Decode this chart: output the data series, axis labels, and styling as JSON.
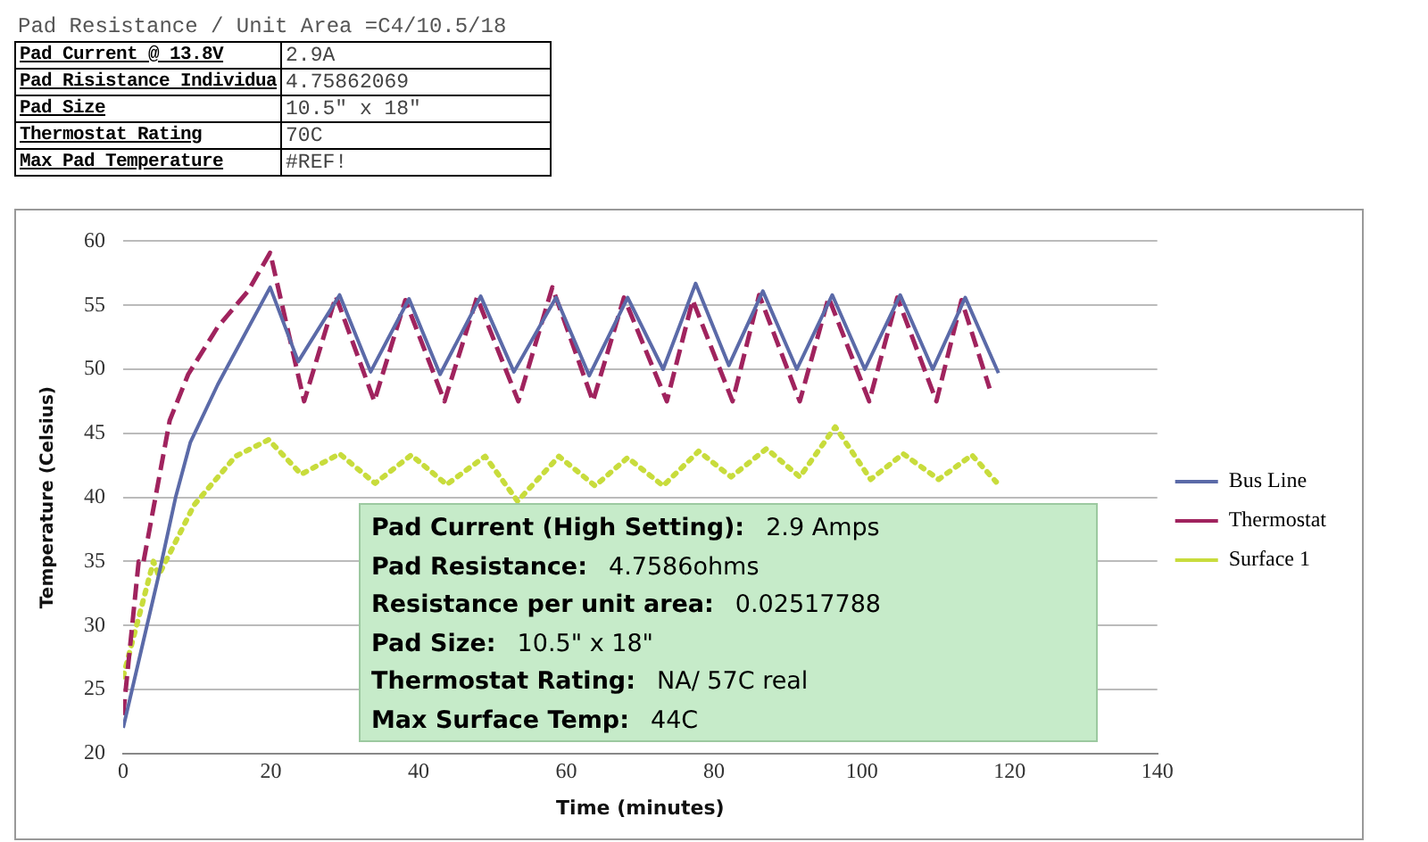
{
  "chart_data": {
    "type": "line",
    "xlabel": "Time (minutes)",
    "ylabel": "Temperature (Celsius)",
    "xlim": [
      0,
      140
    ],
    "xticks": [
      0,
      20,
      40,
      60,
      80,
      100,
      120,
      140
    ],
    "ylim": [
      20,
      60
    ],
    "yticks": [
      20,
      25,
      30,
      35,
      40,
      45,
      50,
      55,
      60
    ],
    "grid": "y",
    "legend": "right",
    "marker": "none",
    "series": [
      {
        "name": "Bus Line",
        "color": "#5b6aa8",
        "line_style": "solid",
        "x": [
          0,
          4.8,
          7.1,
          9.1,
          12.8,
          19.9,
          23.7,
          29.3,
          33.5,
          38.7,
          42.9,
          48.4,
          52.9,
          58.6,
          63.1,
          68.3,
          73.1,
          77.5,
          82.0,
          86.6,
          91.2,
          96.0,
          100.4,
          105.2,
          109.6,
          114.0,
          118.5
        ],
        "values": [
          22,
          33.9,
          40,
          44.3,
          48.8,
          56.4,
          50.6,
          55.8,
          49.8,
          55.5,
          49.6,
          55.7,
          49.8,
          55.6,
          49.5,
          55.6,
          50.0,
          56.7,
          50.3,
          56.1,
          50.0,
          55.8,
          50.0,
          55.8,
          50.0,
          55.6,
          49.7
        ]
      },
      {
        "name": "Thermostat",
        "color": "#a0235e",
        "line_style": "dashed",
        "x": [
          0,
          2.1,
          2.7,
          6.3,
          8.8,
          12.8,
          16.9,
          19.9,
          24.5,
          28.8,
          34,
          38.2,
          43.5,
          47.9,
          53.5,
          58.1,
          63.6,
          67.8,
          73.6,
          77.1,
          82.5,
          86.1,
          91.6,
          95.5,
          101,
          104.8,
          110.1,
          113.5,
          117.3
        ],
        "values": [
          23,
          35,
          34.8,
          46,
          49.6,
          53.3,
          56.1,
          59.1,
          47.5,
          55.7,
          47.5,
          55.4,
          47.5,
          55.6,
          47.5,
          56.4,
          47.5,
          55.6,
          47.5,
          55.4,
          47.5,
          55.8,
          47.5,
          55.6,
          47.5,
          55.6,
          47.5,
          55.4,
          48.5
        ]
      },
      {
        "name": "Surface 1",
        "color": "#c8dc3c",
        "line_style": "dotted",
        "x": [
          0,
          4.1,
          4.8,
          9.6,
          15.2,
          19.7,
          24.1,
          29.3,
          34.1,
          39.0,
          43.8,
          49.0,
          53.4,
          59.0,
          63.9,
          68.3,
          73.1,
          77.9,
          82.3,
          87.1,
          91.6,
          96.4,
          101.2,
          105.6,
          110.4,
          114.9,
          118.2
        ],
        "values": [
          26,
          35,
          33.9,
          39.4,
          43.2,
          44.5,
          41.8,
          43.4,
          41.1,
          43.3,
          41.0,
          43.2,
          39.7,
          43.2,
          40.9,
          43.1,
          40.9,
          43.6,
          41.6,
          43.8,
          41.6,
          45.5,
          41.4,
          43.4,
          41.4,
          43.3,
          41.2
        ]
      }
    ],
    "annotations": [
      "Pad Resistance / Unit Area =C4/10.5/18",
      "Pad Current @ 13.8V",
      "2.9A",
      "Pad Risistance Individua",
      "4.75862069",
      "Pad Size",
      "10.5\" x 18\"",
      "Thermostat Rating",
      "70C",
      "Max Pad Temperature",
      "#REF!",
      "Pad Current (High Setting):",
      "2.9 Amps",
      "Pad Resistance:",
      "4.7586ohms",
      "Resistance per unit area:",
      "0.02517788",
      "Pad Size:",
      "10.5\" x 18\"",
      "Thermostat Rating:",
      "NA/ 57C real",
      "Max Surface Temp:",
      "44C"
    ]
  }
}
